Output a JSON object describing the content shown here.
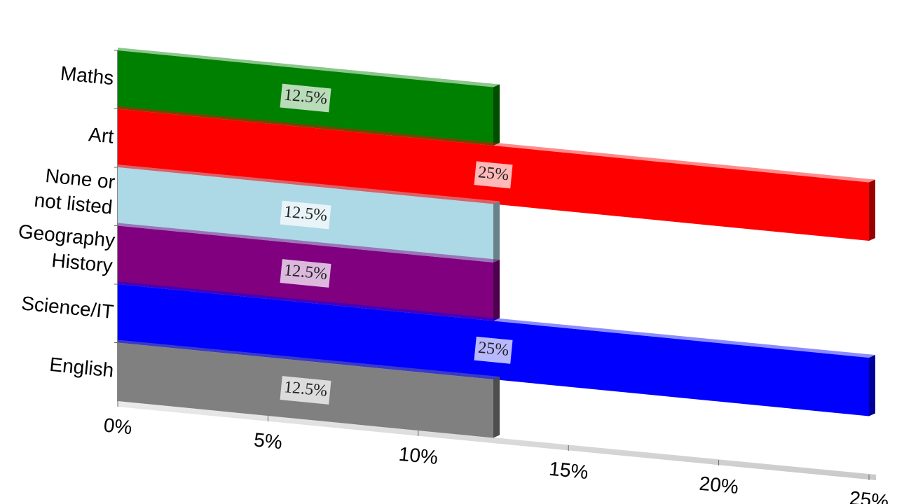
{
  "chart_data": {
    "type": "bar3d",
    "categories": [
      "Maths",
      "Art",
      "None or\nnot listed",
      "Geography\nHistory",
      "Science/IT",
      "English"
    ],
    "values": [
      12.5,
      25,
      12.5,
      12.5,
      25,
      12.5
    ],
    "value_labels": [
      "12.5%",
      "25%",
      "12.5%",
      "12.5%",
      "25%",
      "12.5%"
    ],
    "colors": [
      "#008000",
      "#ff0000",
      "#add8e6",
      "#800080",
      "#0000ff",
      "#808080"
    ],
    "xlim": [
      0,
      25
    ],
    "xticks": [
      {
        "value": 0,
        "label": "0%"
      },
      {
        "value": 5,
        "label": "5%"
      },
      {
        "value": 10,
        "label": "10%"
      },
      {
        "value": 15,
        "label": "15%"
      },
      {
        "value": 20,
        "label": "20%"
      },
      {
        "value": 25,
        "label": "25%"
      }
    ]
  }
}
